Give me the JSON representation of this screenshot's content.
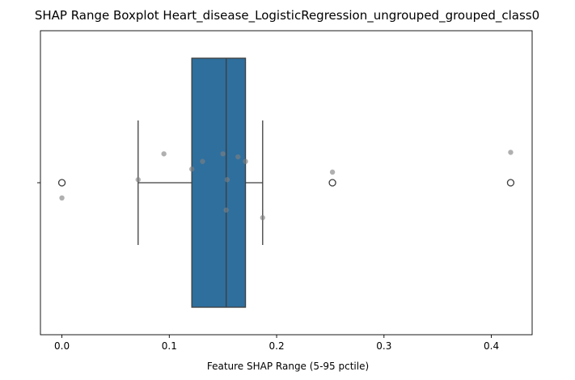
{
  "chart_data": {
    "type": "box",
    "title": "SHAP Range Boxplot Heart_disease_LogisticRegression_ungrouped_grouped_class0",
    "xlabel": "Feature SHAP Range (5-95 pctile)",
    "ylabel": "",
    "xlim": [
      -0.02,
      0.438
    ],
    "xticks": [
      0.0,
      0.1,
      0.2,
      0.3,
      0.4
    ],
    "xtick_labels": [
      "0.0",
      "0.1",
      "0.2",
      "0.3",
      "0.4"
    ],
    "grid": false,
    "box": {
      "whisker_low": 0.071,
      "q1": 0.121,
      "median": 0.153,
      "q3": 0.171,
      "whisker_high": 0.187,
      "outliers": [
        0.0,
        0.252,
        0.418
      ],
      "color": "#2e6f9e"
    },
    "points": [
      {
        "x": 0.0,
        "jitter": 0.1
      },
      {
        "x": 0.071,
        "jitter": -0.02
      },
      {
        "x": 0.095,
        "jitter": -0.19
      },
      {
        "x": 0.121,
        "jitter": -0.09
      },
      {
        "x": 0.131,
        "jitter": -0.14
      },
      {
        "x": 0.15,
        "jitter": -0.19
      },
      {
        "x": 0.164,
        "jitter": -0.17
      },
      {
        "x": 0.171,
        "jitter": -0.14
      },
      {
        "x": 0.154,
        "jitter": -0.02
      },
      {
        "x": 0.153,
        "jitter": 0.18
      },
      {
        "x": 0.187,
        "jitter": 0.23
      },
      {
        "x": 0.252,
        "jitter": -0.07
      },
      {
        "x": 0.418,
        "jitter": -0.2
      }
    ],
    "point_color": "#808080"
  }
}
